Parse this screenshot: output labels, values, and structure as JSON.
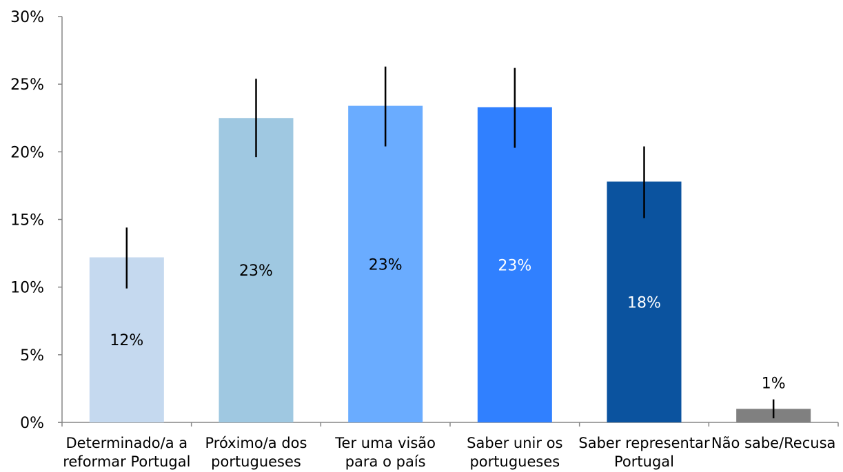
{
  "chart_data": {
    "type": "bar",
    "title": "",
    "xlabel": "",
    "ylabel": "",
    "ylim": [
      0,
      30
    ],
    "yticks": [
      "0%",
      "5%",
      "10%",
      "15%",
      "20%",
      "25%",
      "30%"
    ],
    "grid": false,
    "legend": "none",
    "categories": [
      [
        "Determinado/a a",
        "reformar Portugal"
      ],
      [
        "Próximo/a dos",
        "portugueses"
      ],
      [
        "Ter uma visão",
        "para o país"
      ],
      [
        "Saber unir os",
        "portugueses"
      ],
      [
        "Saber representar",
        "Portugal"
      ],
      [
        "Não sabe/Recusa"
      ]
    ],
    "values": [
      12.2,
      22.5,
      23.4,
      23.3,
      17.8,
      1.0
    ],
    "error_low": [
      9.9,
      19.6,
      20.4,
      20.3,
      15.1,
      0.3
    ],
    "error_high": [
      14.4,
      25.4,
      26.3,
      26.2,
      20.4,
      1.7
    ],
    "data_labels": [
      "12%",
      "23%",
      "23%",
      "23%",
      "18%",
      "1%"
    ],
    "colors": [
      "#C5D9EF",
      "#9FC8E1",
      "#6AACFF",
      "#3080FF",
      "#0B539F",
      "#808080"
    ],
    "label_colors": [
      "#000000",
      "#000000",
      "#000000",
      "#ffffff",
      "#ffffff",
      "#000000"
    ]
  }
}
